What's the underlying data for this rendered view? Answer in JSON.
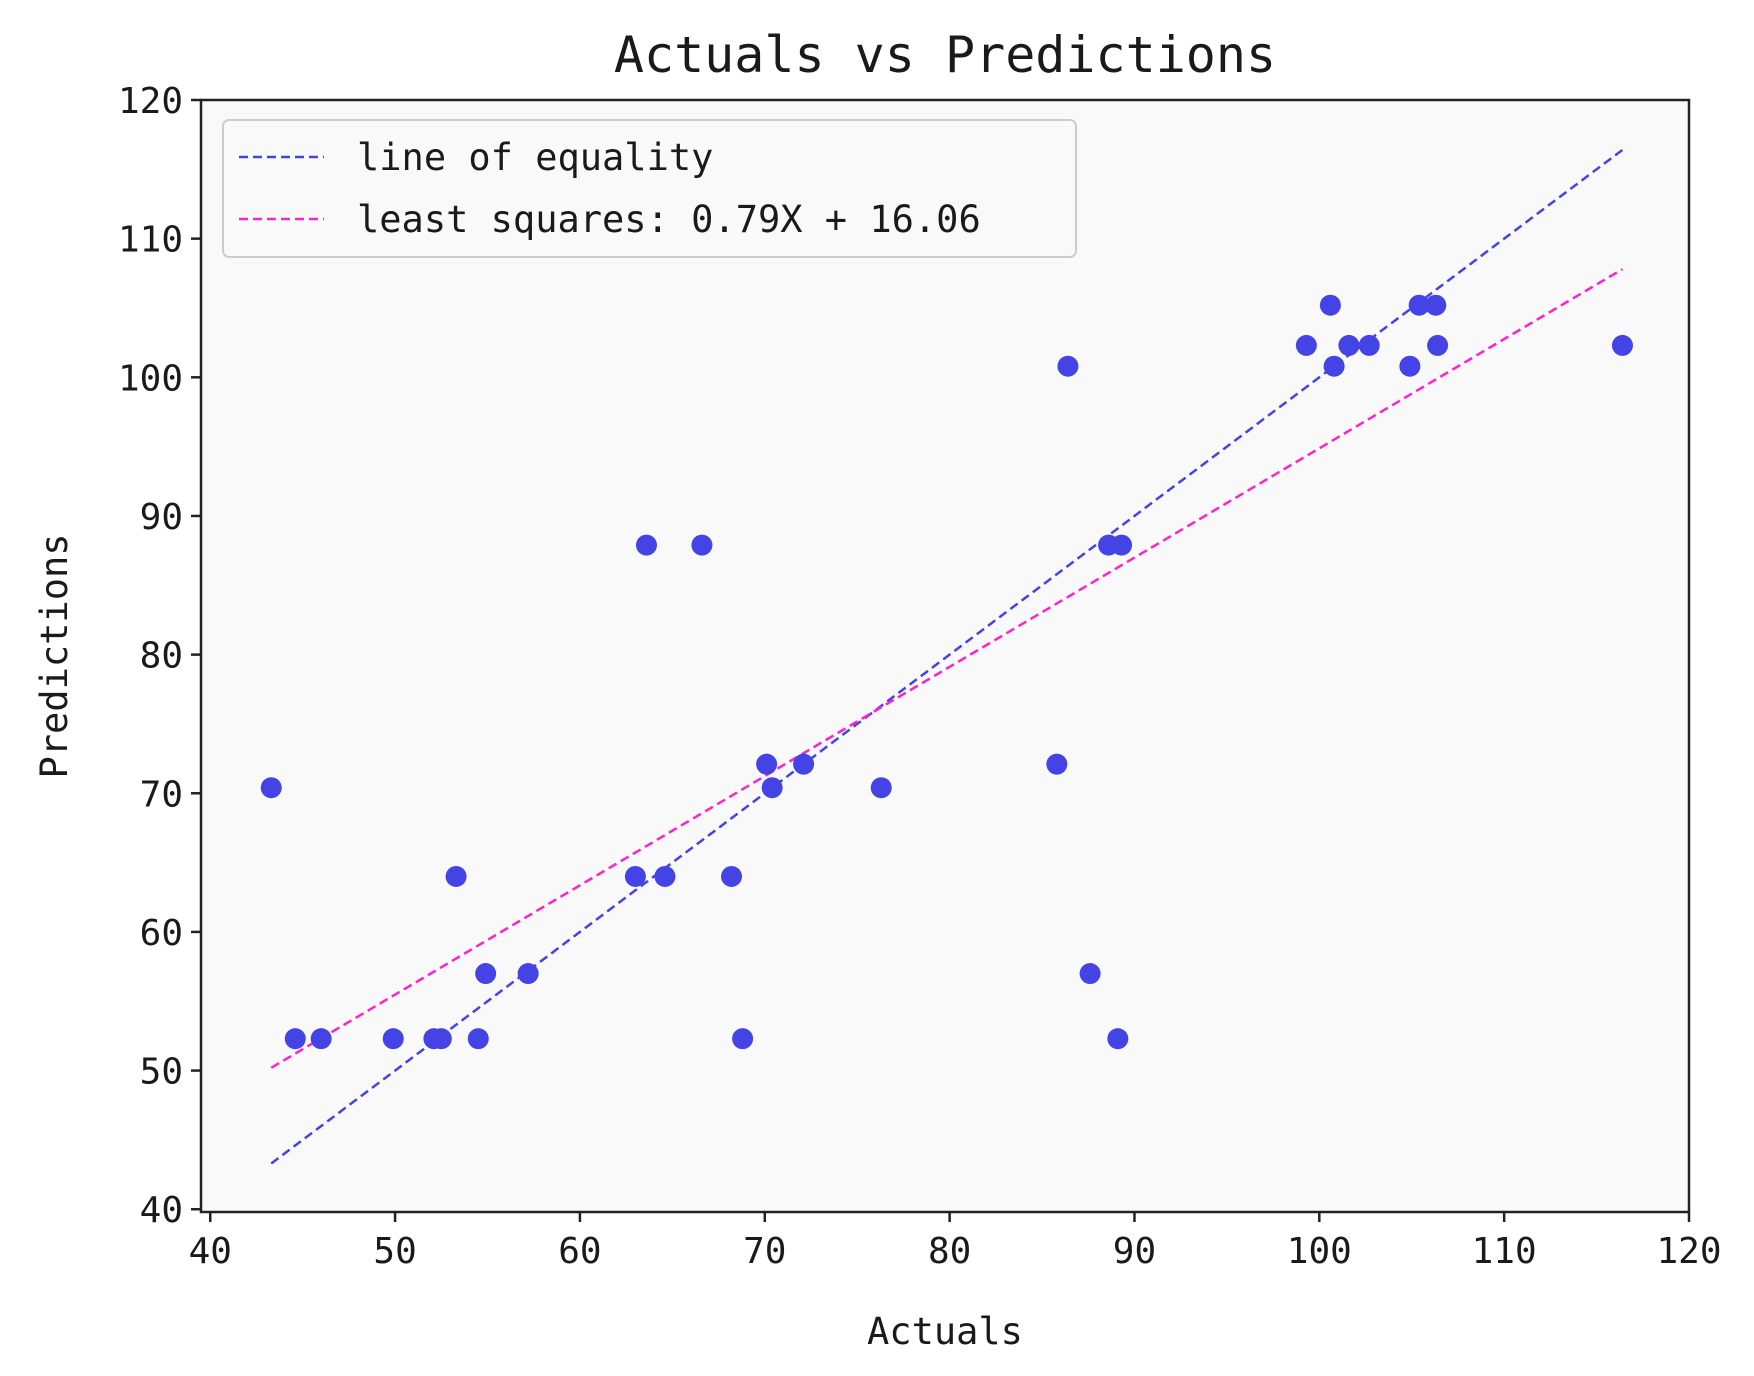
{
  "chart_data": {
    "type": "scatter",
    "title": "Actuals vs Predictions",
    "xlabel": "Actuals",
    "ylabel": "Predictions",
    "xlim": [
      39.5,
      120
    ],
    "ylim": [
      39.8,
      120
    ],
    "xticks": [
      40,
      50,
      60,
      70,
      80,
      90,
      100,
      110,
      120
    ],
    "yticks": [
      40,
      50,
      60,
      70,
      80,
      90,
      100,
      110,
      120
    ],
    "grid": false,
    "legend_position": "top-left",
    "colors": {
      "points": "#4444e6",
      "equality_line": "#4444e6",
      "least_squares_line": "#ff22cc",
      "plot_background": "#f9f9f9",
      "axes": "#222222"
    },
    "series": [
      {
        "type": "scatter",
        "points": [
          [
            43.3,
            70.4
          ],
          [
            44.6,
            52.3
          ],
          [
            46.0,
            52.3
          ],
          [
            49.9,
            52.3
          ],
          [
            52.1,
            52.3
          ],
          [
            52.5,
            52.3
          ],
          [
            53.3,
            64.0
          ],
          [
            54.5,
            52.3
          ],
          [
            54.9,
            57.0
          ],
          [
            57.2,
            57.0
          ],
          [
            63.0,
            64.0
          ],
          [
            63.6,
            87.9
          ],
          [
            64.6,
            64.0
          ],
          [
            66.6,
            87.9
          ],
          [
            68.2,
            64.0
          ],
          [
            68.8,
            52.3
          ],
          [
            70.1,
            72.1
          ],
          [
            70.4,
            70.4
          ],
          [
            72.1,
            72.1
          ],
          [
            76.3,
            70.4
          ],
          [
            85.8,
            72.1
          ],
          [
            86.4,
            100.8
          ],
          [
            87.6,
            57.0
          ],
          [
            88.6,
            87.9
          ],
          [
            89.1,
            52.3
          ],
          [
            89.3,
            87.9
          ],
          [
            99.3,
            102.3
          ],
          [
            100.6,
            105.2
          ],
          [
            100.8,
            100.8
          ],
          [
            101.6,
            102.3
          ],
          [
            102.7,
            102.3
          ],
          [
            104.9,
            100.8
          ],
          [
            105.4,
            105.2
          ],
          [
            106.3,
            105.2
          ],
          [
            106.4,
            102.3
          ],
          [
            116.4,
            102.3
          ]
        ]
      },
      {
        "type": "line",
        "name": "line of equality",
        "style": "dashed",
        "x": [
          43.3,
          116.4
        ],
        "y": [
          43.3,
          116.4
        ]
      },
      {
        "type": "line",
        "name": "least squares: 0.79X + 16.06",
        "style": "dashed",
        "x": [
          43.3,
          116.4
        ],
        "y": [
          50.2,
          107.8
        ]
      }
    ]
  }
}
